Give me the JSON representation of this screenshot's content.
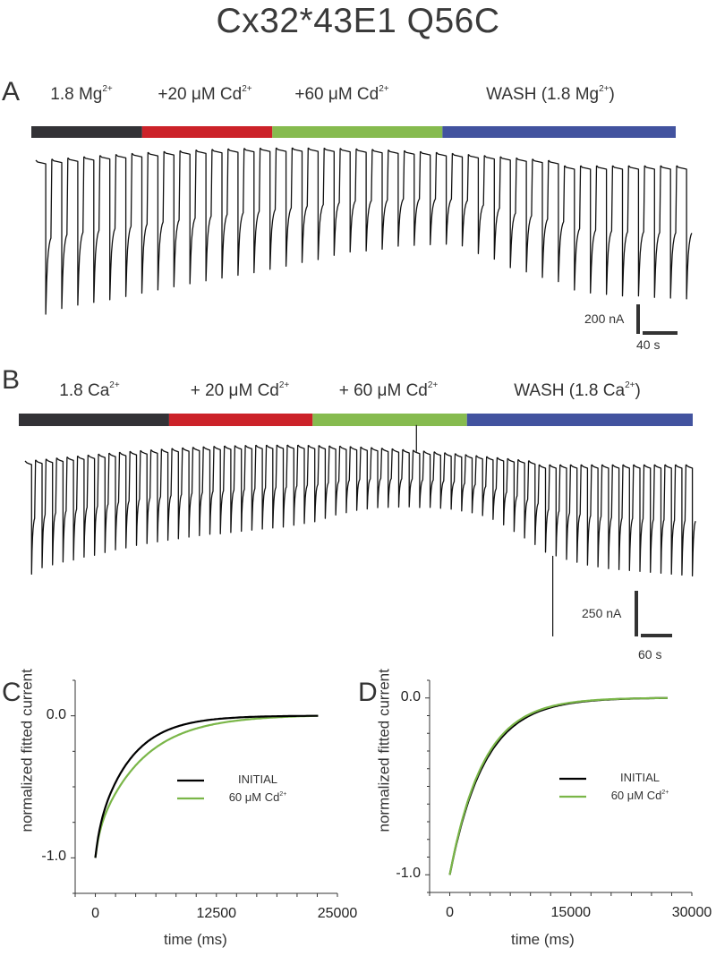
{
  "title": "Cx32*43E1 Q56C",
  "colors": {
    "black_bar": "#333236",
    "red_bar": "#cc2229",
    "green_bar": "#86bb4f",
    "blue_bar": "#42539f",
    "trace": "#111111",
    "initial_curve": "#000000",
    "cd_curve": "#7ab648"
  },
  "chart_data": [
    {
      "panel": "A",
      "type": "line",
      "title": "",
      "conditions": [
        {
          "label": "1.8 Mg",
          "sup": "2+",
          "suffix": "",
          "color": "black_bar",
          "frac": [
            0.0,
            0.172
          ]
        },
        {
          "label": "+20 μM Cd",
          "sup": "2+",
          "suffix": "",
          "color": "red_bar",
          "frac": [
            0.172,
            0.374
          ]
        },
        {
          "label": "+60 μM Cd",
          "sup": "2+",
          "suffix": "",
          "color": "green_bar",
          "frac": [
            0.374,
            0.638
          ]
        },
        {
          "label": "WASH (1.8 Mg",
          "sup": "2+",
          "suffix": ")",
          "color": "blue_bar",
          "frac": [
            0.638,
            1.0
          ]
        }
      ],
      "pulse_interval_s": 20,
      "pulse_peak_nA": [
        1030,
        1000,
        985,
        975,
        965,
        950,
        935,
        920,
        905,
        890,
        875,
        860,
        845,
        830,
        810,
        790,
        765,
        745,
        715,
        690,
        680,
        665,
        640,
        630,
        620,
        610,
        615,
        660,
        690,
        740,
        760,
        790,
        810,
        830,
        850,
        860,
        870,
        870,
        880,
        885,
        890
      ],
      "scale_bar": {
        "y_value": 200,
        "y_unit": "nA",
        "y_label": "200 nA",
        "x_value": 40,
        "x_unit": "s",
        "x_label": "40 s"
      }
    },
    {
      "panel": "B",
      "type": "line",
      "title": "",
      "conditions": [
        {
          "label": "1.8 Ca",
          "sup": "2+",
          "suffix": "",
          "color": "black_bar",
          "frac": [
            0.0,
            0.223
          ]
        },
        {
          "label": "+ 20 μM Cd",
          "sup": "2+",
          "suffix": "",
          "color": "red_bar",
          "frac": [
            0.223,
            0.436
          ]
        },
        {
          "label": "+ 60 μM Cd",
          "sup": "2+",
          "suffix": "",
          "color": "green_bar",
          "frac": [
            0.436,
            0.665
          ]
        },
        {
          "label": "WASH (1.8 Ca",
          "sup": "2+",
          "suffix": ")",
          "color": "blue_bar",
          "frac": [
            0.665,
            1.0
          ]
        }
      ],
      "pulse_interval_s": 20,
      "pulse_peak_nA": [
        610,
        580,
        570,
        560,
        555,
        545,
        540,
        530,
        520,
        515,
        505,
        500,
        495,
        490,
        485,
        480,
        475,
        470,
        470,
        465,
        460,
        455,
        450,
        445,
        440,
        430,
        420,
        410,
        390,
        370,
        355,
        340,
        330,
        320,
        315,
        310,
        305,
        305,
        300,
        300,
        300,
        305,
        310,
        320,
        335,
        360,
        390,
        420,
        450,
        470,
        490,
        510,
        525,
        540,
        550,
        560,
        565,
        570,
        575,
        580,
        585,
        590,
        595,
        600
      ],
      "artifacts": [
        {
          "pulse": 37,
          "direction": "up"
        },
        {
          "pulse": 50,
          "direction": "down"
        }
      ],
      "scale_bar": {
        "y_value": 250,
        "y_unit": "nA",
        "y_label": "250 nA",
        "x_value": 60,
        "x_unit": "s",
        "x_label": "60 s"
      }
    },
    {
      "panel": "C",
      "type": "line",
      "xlabel": "time (ms)",
      "ylabel": "normalized fitted current",
      "xlim": [
        -2083,
        25000
      ],
      "ylim": [
        -1.25,
        0.25
      ],
      "xticks": [
        0,
        12500,
        25000
      ],
      "xtick_labels": [
        "0",
        "12500",
        "25000"
      ],
      "yticks": [
        0.0,
        -1.0
      ],
      "ytick_labels": [
        "0.0",
        "-1.0"
      ],
      "legend": "center-right",
      "series": [
        {
          "name": "INITIAL",
          "color": "initial_curve",
          "x_end": 23000,
          "fast_amp": 0.15,
          "tau_fast_ms": 400,
          "tau_slow_ms": 3500
        },
        {
          "name": "60 μM Cd",
          "sup": "2+",
          "color": "cd_curve",
          "x_end": 23000,
          "fast_amp": 0.15,
          "tau_fast_ms": 400,
          "tau_slow_ms": 4700
        }
      ]
    },
    {
      "panel": "D",
      "type": "line",
      "xlabel": "time (ms)",
      "ylabel": "normalized fitted current",
      "xlim": [
        -2500,
        30000
      ],
      "ylim": [
        -1.1,
        0.1
      ],
      "xticks": [
        0,
        15000,
        30000
      ],
      "xtick_labels": [
        "0",
        "15000",
        "30000"
      ],
      "yticks": [
        0.0,
        -1.0
      ],
      "ytick_labels": [
        "0.0",
        "-1.0"
      ],
      "legend": "center-right",
      "series": [
        {
          "name": "INITIAL",
          "color": "initial_curve",
          "x_end": 27000,
          "fast_amp": 0.0,
          "tau_fast_ms": 1,
          "tau_slow_ms": 4300
        },
        {
          "name": "60 μM Cd",
          "sup": "2+",
          "color": "cd_curve",
          "x_end": 27000,
          "fast_amp": 0.0,
          "tau_fast_ms": 1,
          "tau_slow_ms": 4150
        }
      ]
    }
  ]
}
